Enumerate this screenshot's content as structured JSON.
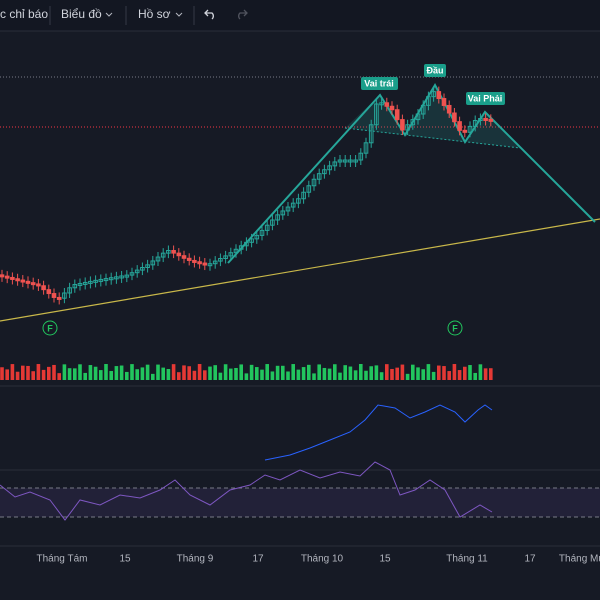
{
  "toolbar": {
    "items": [
      "c chỉ báo",
      "Biểu đồ",
      "Hồ sơ"
    ]
  },
  "pattern_labels": [
    "Vai trái",
    "Đầu",
    "Vai Phải"
  ],
  "event_markers": [
    "F",
    "F"
  ],
  "x_axis_labels": [
    "Tháng Tám",
    "15",
    "Tháng 9",
    "17",
    "Tháng 10",
    "15",
    "Tháng 11",
    "17",
    "Tháng Mư"
  ]
}
